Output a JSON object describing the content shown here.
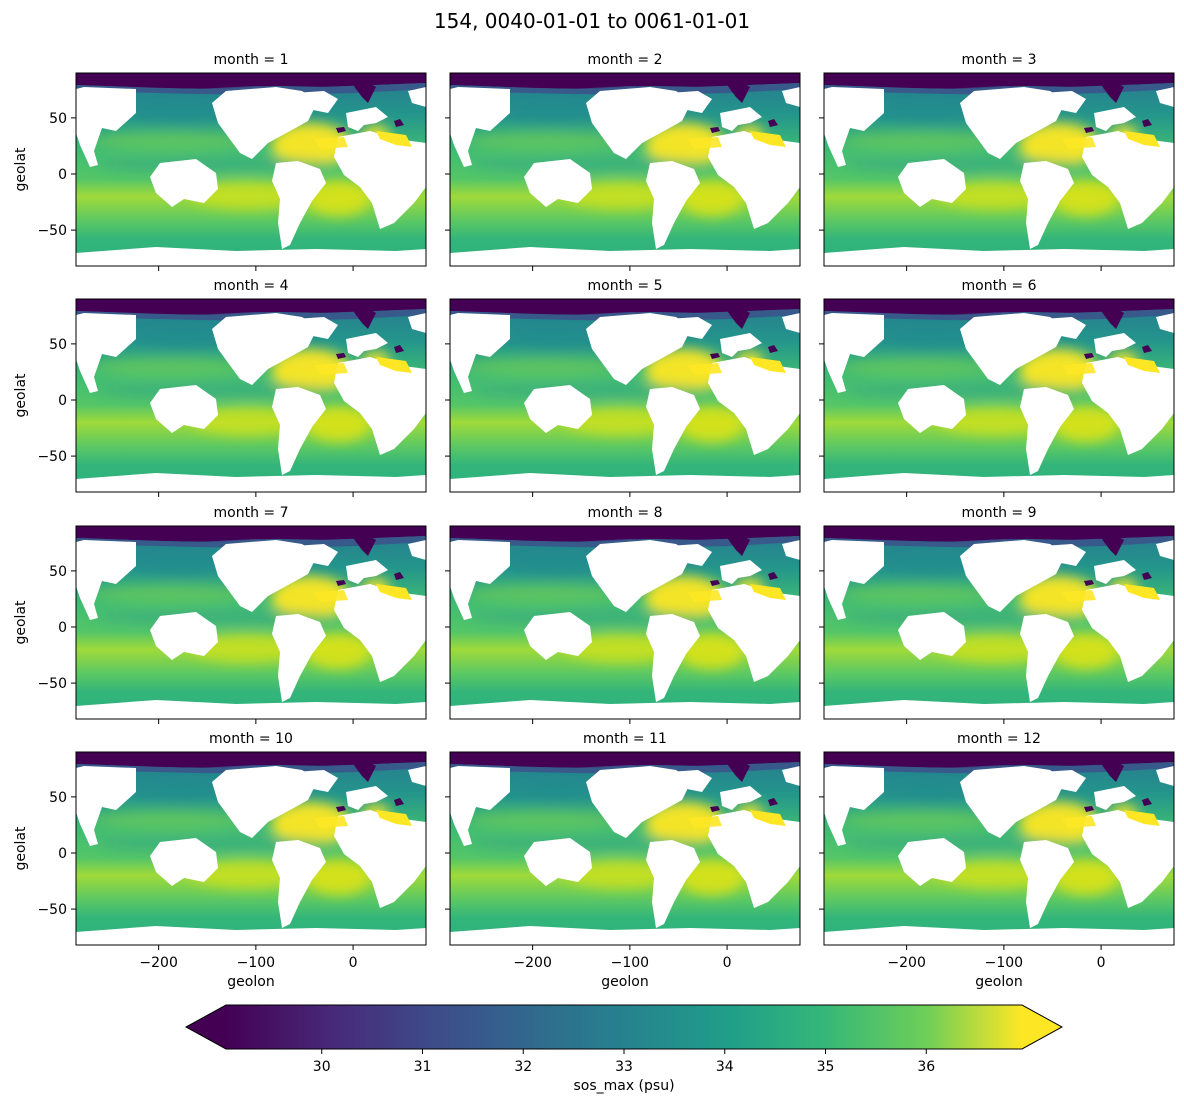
{
  "figure": {
    "title": "154, 0040-01-01 to 0061-01-01"
  },
  "chart_data": {
    "type": "heatmap",
    "panel_titles": [
      "month = 1",
      "month = 2",
      "month = 3",
      "month = 4",
      "month = 5",
      "month = 6",
      "month = 7",
      "month = 8",
      "month = 9",
      "month = 10",
      "month = 11",
      "month = 12"
    ],
    "xlabel": "geolon",
    "ylabel": "geolat",
    "xlim": [
      -285,
      75
    ],
    "ylim": [
      -82,
      90
    ],
    "x_ticks": [
      -200,
      -100,
      0
    ],
    "x_tick_labels": [
      "−200",
      "−100",
      "0"
    ],
    "y_ticks": [
      50,
      0,
      -50
    ],
    "y_tick_labels": [
      "50",
      "0",
      "−50"
    ],
    "colormap": "viridis",
    "colorbar": {
      "label": "sos_max (psu)",
      "vmin": 29.05,
      "vmax": 36.95,
      "extend": "both",
      "ticks": [
        30,
        31,
        32,
        33,
        34,
        35,
        36
      ],
      "tick_labels": [
        "30",
        "31",
        "32",
        "33",
        "34",
        "35",
        "36"
      ]
    },
    "colors": {
      "land": "#ffffff",
      "viridis_low": "#440154",
      "viridis_mid": "#21918c",
      "viridis_high": "#fde725"
    }
  }
}
